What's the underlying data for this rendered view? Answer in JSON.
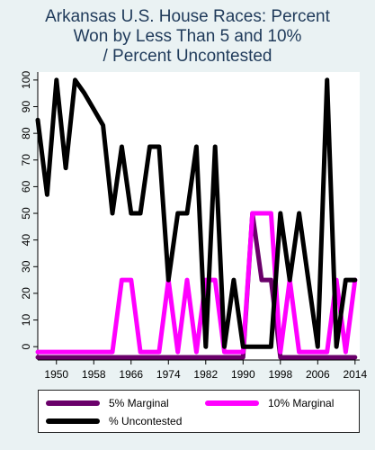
{
  "chart_data": {
    "type": "line",
    "title_lines": [
      "Arkansas U.S. House Races: Percent",
      "Won by Less Than 5 and 10%",
      "/ Percent Uncontested"
    ],
    "xlabel": "",
    "ylabel": "",
    "xlim": [
      1946,
      2015
    ],
    "ylim": [
      -5,
      103
    ],
    "x_ticks": [
      1950,
      1958,
      1966,
      1974,
      1982,
      1990,
      1998,
      2006,
      2014
    ],
    "x_tick_labels": [
      "1950",
      "1958",
      "1966",
      "1974",
      "1982",
      "1990",
      "1998",
      "2006",
      "2014"
    ],
    "y_ticks": [
      0,
      10,
      20,
      30,
      40,
      50,
      60,
      70,
      80,
      90,
      100
    ],
    "y_tick_labels": [
      "0",
      "10",
      "20",
      "30",
      "40",
      "50",
      "60",
      "70",
      "80",
      "90",
      "100"
    ],
    "grid": false,
    "legend_position": "bottom",
    "x": [
      1946,
      1948,
      1950,
      1952,
      1954,
      1956,
      1958,
      1960,
      1962,
      1964,
      1966,
      1968,
      1970,
      1972,
      1974,
      1976,
      1978,
      1980,
      1982,
      1984,
      1986,
      1988,
      1990,
      1992,
      1994,
      1996,
      1998,
      2000,
      2002,
      2004,
      2006,
      2008,
      2010,
      2012,
      2014
    ],
    "series": [
      {
        "name": "5% Marginal",
        "color": "#6a006a",
        "values": [
          -4,
          -4,
          -4,
          -4,
          -4,
          -4,
          -4,
          -4,
          -4,
          -4,
          -4,
          -4,
          -4,
          -4,
          -4,
          -4,
          -4,
          -4,
          -4,
          -4,
          -4,
          -4,
          -4,
          50,
          25,
          25,
          -4,
          -4,
          -4,
          -4,
          -4,
          -4,
          -4,
          -4,
          -4
        ]
      },
      {
        "name": "10% Marginal",
        "color": "#ff00ff",
        "values": [
          -2,
          -2,
          -2,
          -2,
          -2,
          -2,
          -2,
          -2,
          -2,
          25,
          25,
          -2,
          -2,
          -2,
          25,
          -2,
          25,
          -2,
          25,
          25,
          -2,
          -2,
          -2,
          50,
          50,
          50,
          -2,
          25,
          -2,
          -2,
          -2,
          -2,
          25,
          -2,
          25
        ]
      },
      {
        "name": "% Uncontested",
        "color": "#000000",
        "values": [
          85,
          57,
          100,
          67,
          100,
          95,
          89,
          83,
          50,
          75,
          50,
          50,
          75,
          75,
          25,
          50,
          50,
          75,
          0,
          75,
          0,
          25,
          0,
          0,
          0,
          0,
          50,
          25,
          50,
          25,
          0,
          100,
          0,
          25,
          25
        ]
      }
    ]
  }
}
